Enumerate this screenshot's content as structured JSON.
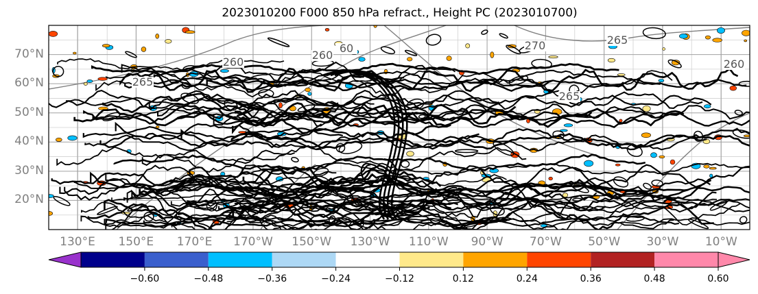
{
  "title": "2023010200 F000 850 hPa refract., Height PC (2023010700)",
  "map": {
    "lat_labels": [
      "70°N",
      "60°N",
      "50°N",
      "40°N",
      "30°N",
      "20°N"
    ],
    "lat_values": [
      70,
      60,
      50,
      40,
      30,
      20
    ],
    "lon_labels": [
      "130°E",
      "150°E",
      "170°E",
      "170°W",
      "150°W",
      "130°W",
      "110°W",
      "90°W",
      "70°W",
      "50°W",
      "30°W",
      "10°W"
    ],
    "lat_range": [
      10,
      80
    ],
    "grid": true,
    "height_contour_labels": [
      "60",
      "260",
      "265",
      "270",
      "265",
      "260",
      "265",
      "260"
    ],
    "colors": {
      "grid": "#a0a0a0",
      "height_contour": "#808080",
      "refract_contour": "#000000"
    }
  },
  "colorbar": {
    "ticks": [
      "−0.60",
      "−0.48",
      "−0.36",
      "−0.24",
      "−0.12",
      "0.12",
      "0.24",
      "0.36",
      "0.48",
      "0.60"
    ],
    "colors": [
      "#9932cc",
      "#00008b",
      "#3a5fcd",
      "#00bfff",
      "#add8f5",
      "#ffffff",
      "#ffe98a",
      "#ffa500",
      "#ff4500",
      "#b22222",
      "#ff88aa",
      "#ff88aa"
    ],
    "extend": "both"
  }
}
